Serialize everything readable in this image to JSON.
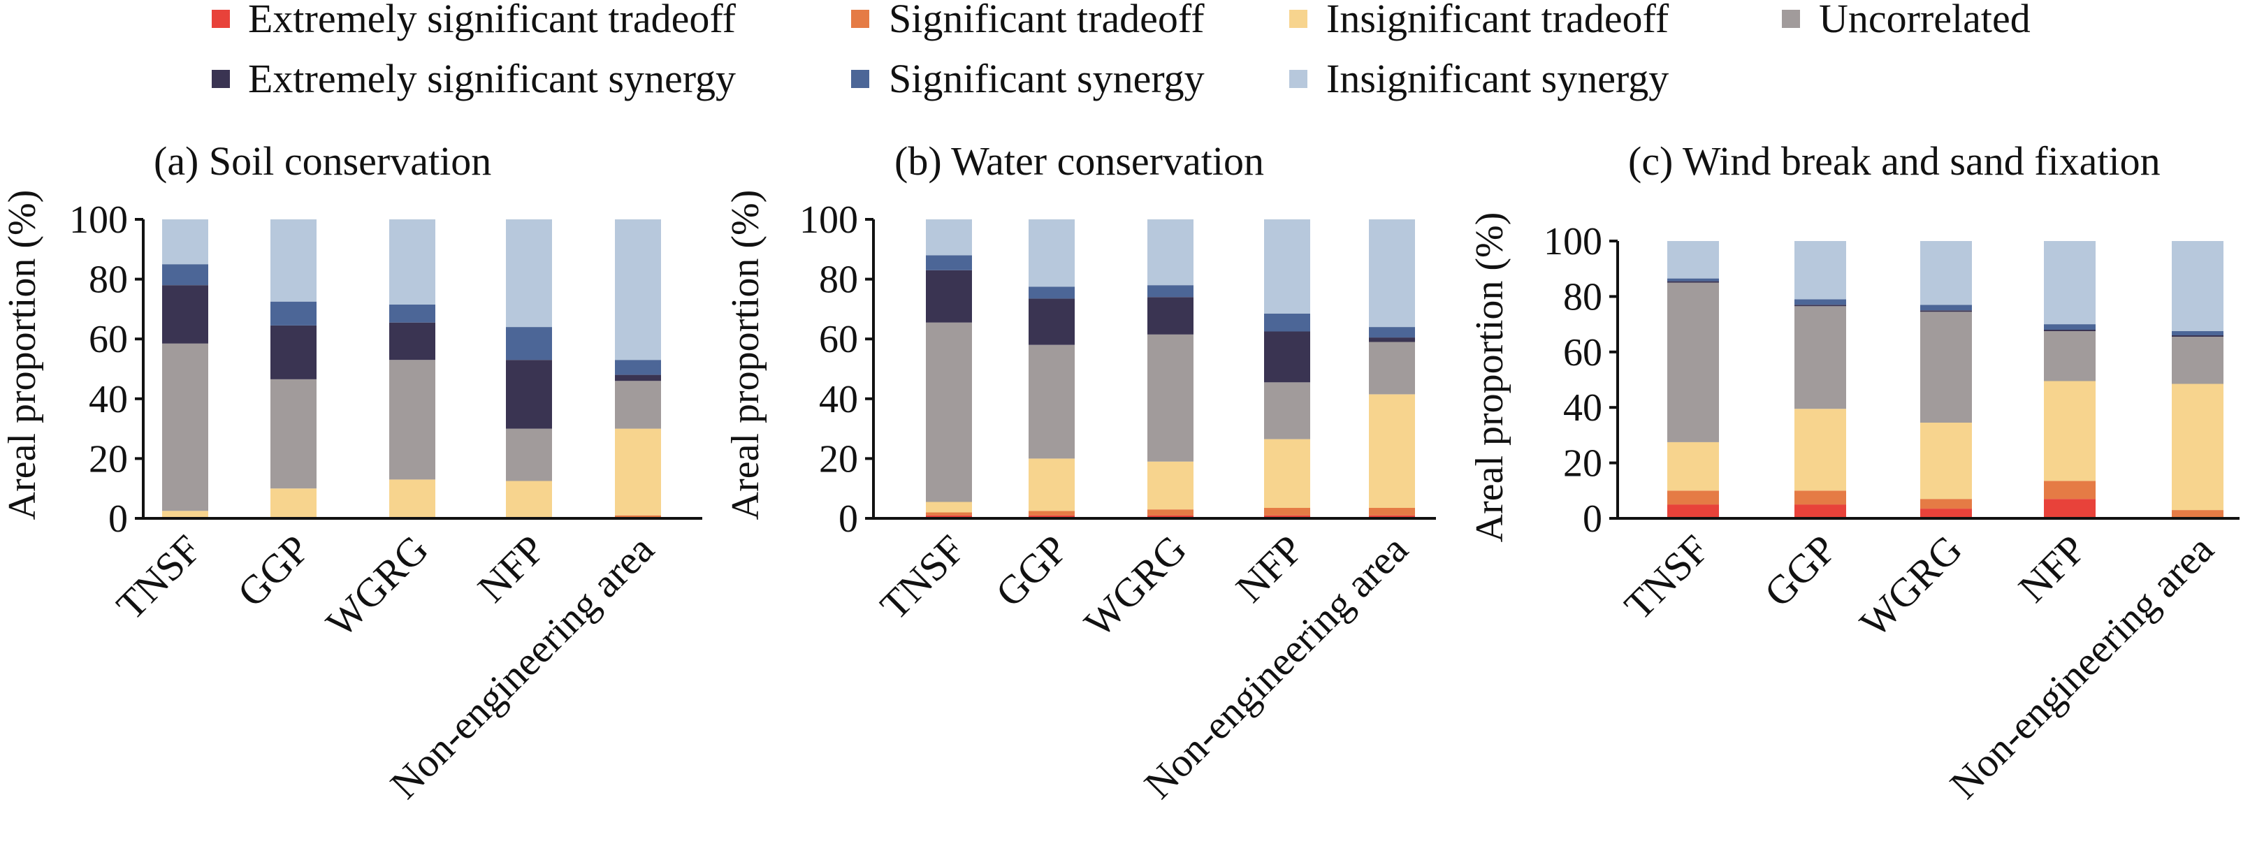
{
  "legend": [
    {
      "name": "Extremely significant tradeoff",
      "color": "#e8423a"
    },
    {
      "name": "Significant tradeoff",
      "color": "#e57b45"
    },
    {
      "name": "Insignificant tradeoff",
      "color": "#f7d48e"
    },
    {
      "name": "Uncorrelated",
      "color": "#a19b9b"
    },
    {
      "name": "Extremely significant synergy",
      "color": "#3a3452"
    },
    {
      "name": "Significant synergy",
      "color": "#4c6697"
    },
    {
      "name": "Insignificant synergy",
      "color": "#b7c8dc"
    }
  ],
  "chart_data": [
    {
      "type": "bar",
      "stacked": true,
      "title": "(a) Soil conservation",
      "ylabel": "Areal proportion (%)",
      "ylim": [
        0,
        100
      ],
      "yticks": [
        "0",
        "20",
        "40",
        "60",
        "80",
        "100"
      ],
      "categories": [
        "TNSF",
        "GGP",
        "WGRG",
        "NFP",
        "Non-engineering area"
      ],
      "series": [
        {
          "name": "Extremely significant tradeoff",
          "values": [
            0,
            0,
            0,
            0,
            0
          ]
        },
        {
          "name": "Significant tradeoff",
          "values": [
            0,
            0,
            0,
            0,
            1
          ]
        },
        {
          "name": "Insignificant tradeoff",
          "values": [
            2.5,
            10,
            13,
            12.5,
            29
          ]
        },
        {
          "name": "Uncorrelated",
          "values": [
            56,
            36.5,
            40,
            17.5,
            16
          ]
        },
        {
          "name": "Extremely significant synergy",
          "values": [
            19.5,
            18,
            12.5,
            23,
            2
          ]
        },
        {
          "name": "Significant synergy",
          "values": [
            7,
            8,
            6,
            11,
            5
          ]
        },
        {
          "name": "Insignificant synergy",
          "values": [
            15,
            27.5,
            28.5,
            36,
            47
          ]
        }
      ]
    },
    {
      "type": "bar",
      "stacked": true,
      "title": "(b) Water conservation",
      "ylabel": "Areal proportion (%)",
      "ylim": [
        0,
        100
      ],
      "yticks": [
        "0",
        "20",
        "40",
        "60",
        "80",
        "100"
      ],
      "categories": [
        "TNSF",
        "GGP",
        "WGRG",
        "NFP",
        "Non-engineering area"
      ],
      "series": [
        {
          "name": "Extremely significant tradeoff",
          "values": [
            1,
            1,
            1,
            1,
            1
          ]
        },
        {
          "name": "Significant tradeoff",
          "values": [
            1,
            1.5,
            2,
            2.5,
            2.5
          ]
        },
        {
          "name": "Insignificant tradeoff",
          "values": [
            3.5,
            17.5,
            16,
            23,
            38
          ]
        },
        {
          "name": "Uncorrelated",
          "values": [
            60,
            38,
            42.5,
            19,
            17.5
          ]
        },
        {
          "name": "Extremely significant synergy",
          "values": [
            17.5,
            15.5,
            12.5,
            17,
            1.5
          ]
        },
        {
          "name": "Significant synergy",
          "values": [
            5,
            4,
            4,
            6,
            3.5
          ]
        },
        {
          "name": "Insignificant synergy",
          "values": [
            12,
            22.5,
            22,
            31.5,
            36
          ]
        }
      ]
    },
    {
      "type": "bar",
      "stacked": true,
      "title": "(c) Wind break and sand fixation",
      "ylabel": "Areal proportion (%)",
      "ylim": [
        0,
        100
      ],
      "yticks": [
        "0",
        "20",
        "40",
        "60",
        "80",
        "100"
      ],
      "categories": [
        "TNSF",
        "GGP",
        "WGRG",
        "NFP",
        "Non-engineering area"
      ],
      "series": [
        {
          "name": "Extremely significant tradeoff",
          "values": [
            5,
            5,
            3.5,
            7,
            0.5
          ]
        },
        {
          "name": "Significant tradeoff",
          "values": [
            5,
            5,
            3.5,
            6.5,
            2.5
          ]
        },
        {
          "name": "Insignificant tradeoff",
          "values": [
            17.5,
            29.5,
            27.5,
            36,
            45.5
          ]
        },
        {
          "name": "Uncorrelated",
          "values": [
            57.5,
            37,
            40,
            18,
            17
          ]
        },
        {
          "name": "Extremely significant synergy",
          "values": [
            0.5,
            0.5,
            0.5,
            0.5,
            0.5
          ]
        },
        {
          "name": "Significant synergy",
          "values": [
            1,
            2,
            2,
            2,
            1.5
          ]
        },
        {
          "name": "Insignificant synergy",
          "values": [
            13.5,
            21,
            23,
            30,
            32.5
          ]
        }
      ]
    }
  ]
}
